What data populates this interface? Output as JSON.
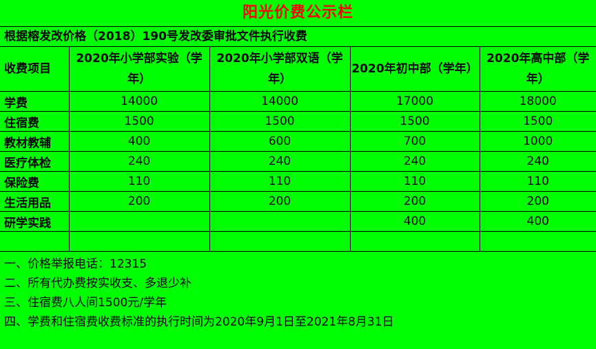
{
  "title": "阳光价费公示栏",
  "subtitle": "根据榕发改价格（2018）190号发改委审批文件执行收费",
  "header": {
    "item_label": "收费项目",
    "columns": [
      "2020年小学部实验（学年）",
      "2020年小学部双语（学年）",
      "2020年初中部（学年）",
      "2020年高中部（学年）"
    ]
  },
  "rows": [
    {
      "item": "学费",
      "values": [
        "14000",
        "14000",
        "17000",
        "18000"
      ]
    },
    {
      "item": "住宿费",
      "values": [
        "1500",
        "1500",
        "1500",
        "1500"
      ]
    },
    {
      "item": "教材教辅",
      "values": [
        "400",
        "600",
        "700",
        "1000"
      ]
    },
    {
      "item": "医疗体检",
      "values": [
        "240",
        "240",
        "240",
        "240"
      ]
    },
    {
      "item": "保险费",
      "values": [
        "110",
        "110",
        "110",
        "110"
      ]
    },
    {
      "item": "生活用品",
      "values": [
        "200",
        "200",
        "200",
        "200"
      ]
    },
    {
      "item": "研学实践",
      "values": [
        "",
        "",
        "400",
        "400"
      ]
    }
  ],
  "notes": [
    "一、价格举报电话：12315",
    "二、所有代办费按实收支、多退少补",
    "三、住宿费八人间1500元/学年",
    "四、学费和住宿费收费标准的执行时间为2020年9月1日至2021年8月31日"
  ],
  "colors": {
    "background": "#00ff00",
    "title": "#ff0000",
    "text": "#000000"
  }
}
